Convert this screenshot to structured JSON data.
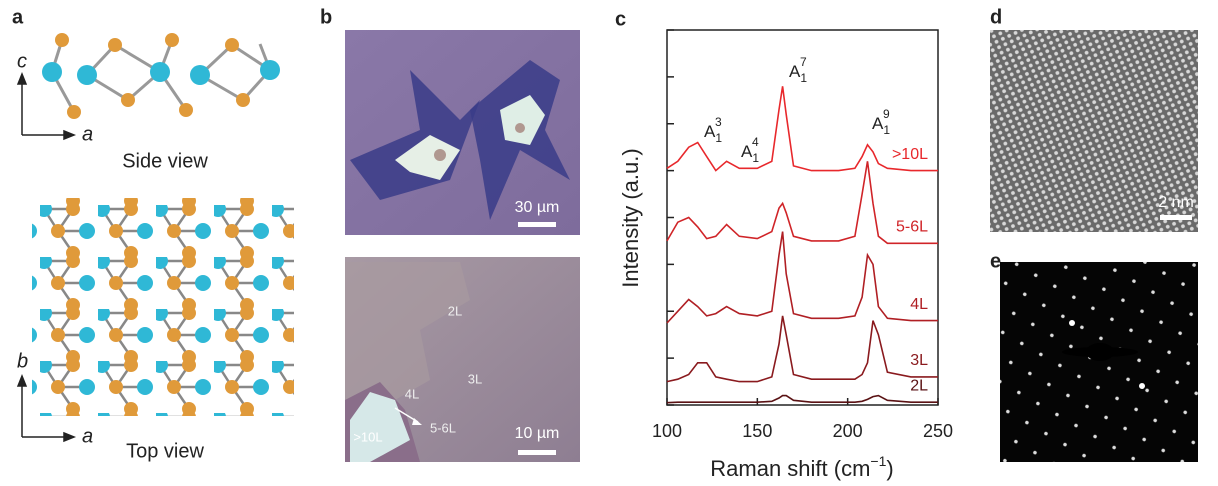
{
  "panels": {
    "a": {
      "label": "a",
      "side_axes": [
        "c",
        "a"
      ],
      "side_caption": "Side view",
      "top_axes": [
        "b",
        "a"
      ],
      "top_caption": "Top view"
    },
    "b": {
      "label": "b",
      "top_scale": "30 µm",
      "bottom_regions": [
        "2L",
        "3L",
        "4L",
        "5-6L",
        ">10L"
      ],
      "bottom_scale": "10 µm"
    },
    "c": {
      "label": "c"
    },
    "d": {
      "label": "d",
      "scale": "2 nm"
    },
    "e": {
      "label": "e"
    }
  },
  "chart_data": {
    "type": "line",
    "xlabel": {
      "text": "Raman shift (cm",
      "sup": "−1",
      "end": ")"
    },
    "ylabel": "Intensity (a.u.)",
    "x": [
      100,
      106,
      112,
      117,
      122,
      127,
      133,
      140,
      150,
      158,
      162,
      164,
      166,
      170,
      180,
      195,
      204,
      208,
      211,
      214,
      217,
      222,
      235,
      250
    ],
    "xlim": [
      100,
      250
    ],
    "xticks": [
      100,
      150,
      200,
      250
    ],
    "ylim": [
      0,
      8
    ],
    "yticks": [
      0,
      1,
      2,
      3,
      4,
      5,
      6,
      7,
      8
    ],
    "annotations": [
      {
        "base": "A",
        "sub": "1",
        "sup": "3"
      },
      {
        "base": "A",
        "sub": "1",
        "sup": "4"
      },
      {
        "base": "A",
        "sub": "1",
        "sup": "7"
      },
      {
        "base": "A",
        "sub": "1",
        "sup": "9"
      }
    ],
    "series": [
      {
        "name": ">10L",
        "color": "#e8282c",
        "values": [
          5.05,
          5.2,
          5.5,
          5.6,
          5.3,
          5.0,
          5.2,
          5.05,
          5.05,
          5.2,
          6.3,
          6.8,
          6.2,
          5.1,
          5.0,
          5.0,
          5.05,
          5.3,
          5.55,
          5.4,
          5.15,
          5.05,
          5.0,
          5.0
        ]
      },
      {
        "name": "5-6L",
        "color": "#d02428",
        "values": [
          3.5,
          3.9,
          4.0,
          3.8,
          3.55,
          3.6,
          3.85,
          3.6,
          3.55,
          3.7,
          4.2,
          4.3,
          4.1,
          3.6,
          3.5,
          3.5,
          3.6,
          4.5,
          5.2,
          4.3,
          3.6,
          3.45,
          3.45,
          3.45
        ]
      },
      {
        "name": "4L",
        "color": "#b01f24",
        "values": [
          1.75,
          2.0,
          2.25,
          2.1,
          1.9,
          1.95,
          2.1,
          1.95,
          1.9,
          2.0,
          3.2,
          3.7,
          2.8,
          1.95,
          1.85,
          1.85,
          1.9,
          2.3,
          3.2,
          3.0,
          2.1,
          1.85,
          1.8,
          1.8
        ]
      },
      {
        "name": "3L",
        "color": "#8a1a1e",
        "values": [
          0.5,
          0.55,
          0.65,
          0.9,
          0.9,
          0.6,
          0.55,
          0.5,
          0.5,
          0.6,
          1.3,
          1.9,
          1.5,
          0.65,
          0.55,
          0.55,
          0.55,
          0.65,
          0.9,
          1.8,
          1.5,
          0.7,
          0.6,
          0.6
        ]
      },
      {
        "name": "2L",
        "color": "#5a1214",
        "values": [
          0.05,
          0.06,
          0.06,
          0.06,
          0.06,
          0.06,
          0.06,
          0.06,
          0.06,
          0.08,
          0.15,
          0.2,
          0.2,
          0.1,
          0.06,
          0.06,
          0.06,
          0.08,
          0.12,
          0.18,
          0.2,
          0.1,
          0.06,
          0.06
        ]
      }
    ]
  }
}
